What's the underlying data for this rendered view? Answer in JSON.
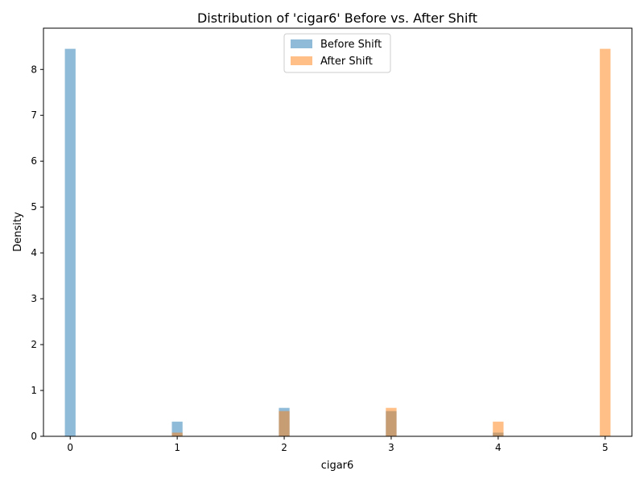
{
  "chart_data": {
    "type": "bar",
    "title": "Distribution of 'cigar6' Before vs. After Shift",
    "xlabel": "cigar6",
    "ylabel": "Density",
    "xlim": [
      -0.25,
      5.25
    ],
    "ylim": [
      0,
      8.9
    ],
    "xticks": [
      "0",
      "1",
      "2",
      "3",
      "4",
      "5"
    ],
    "yticks": [
      "0",
      "1",
      "2",
      "3",
      "4",
      "5",
      "6",
      "7",
      "8"
    ],
    "legend_position": "top-center",
    "grid": false,
    "bin_width": 0.1,
    "series": [
      {
        "name": "Before Shift",
        "color": "#1f77b4",
        "opacity": 0.5,
        "bins": [
          {
            "x": 0,
            "value": 8.45
          },
          {
            "x": 1,
            "value": 0.32
          },
          {
            "x": 2,
            "value": 0.62
          },
          {
            "x": 3,
            "value": 0.55
          },
          {
            "x": 4,
            "value": 0.08
          },
          {
            "x": 5,
            "value": 0.0
          }
        ]
      },
      {
        "name": "After Shift",
        "color": "#ff7f0e",
        "opacity": 0.5,
        "bins": [
          {
            "x": 0,
            "value": 0.0
          },
          {
            "x": 1,
            "value": 0.08
          },
          {
            "x": 2,
            "value": 0.55
          },
          {
            "x": 3,
            "value": 0.62
          },
          {
            "x": 4,
            "value": 0.32
          },
          {
            "x": 5,
            "value": 8.45
          }
        ]
      }
    ]
  }
}
